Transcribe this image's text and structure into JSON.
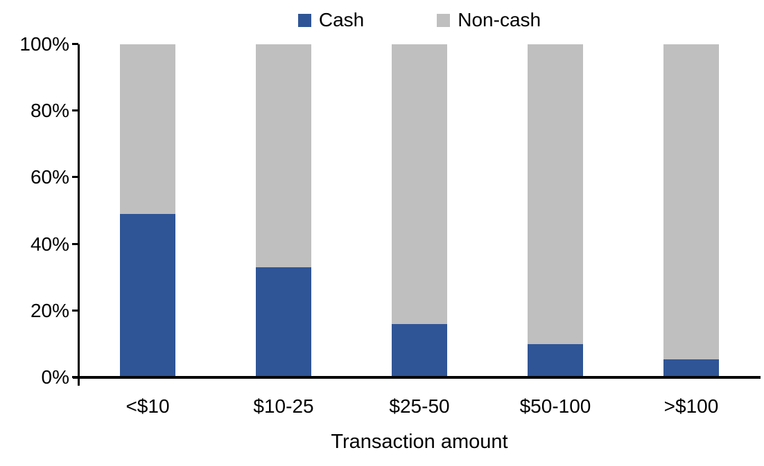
{
  "chart_data": {
    "type": "bar",
    "stacked": true,
    "percent_stacked": true,
    "title": "",
    "categories": [
      "<$10",
      "$10-25",
      "$25-50",
      "$50-100",
      ">$100"
    ],
    "series": [
      {
        "name": "Cash",
        "color": "#2F5596",
        "values": [
          49,
          33,
          16,
          10,
          5.5
        ]
      },
      {
        "name": "Non-cash",
        "color": "#BFBFBF",
        "values": [
          51,
          67,
          84,
          90,
          94.5
        ]
      }
    ],
    "xlabel": "Transaction amount",
    "ylabel": "",
    "ylim": [
      0,
      100
    ],
    "ytick_values": [
      0,
      20,
      40,
      60,
      80,
      100
    ],
    "ytick_labels": [
      "0%",
      "20%",
      "40%",
      "60%",
      "80%",
      "100%"
    ],
    "legend_position": "top-center",
    "grid": false,
    "colors": {
      "axis": "#000000",
      "background": "#FFFFFF",
      "text": "#000000"
    }
  }
}
